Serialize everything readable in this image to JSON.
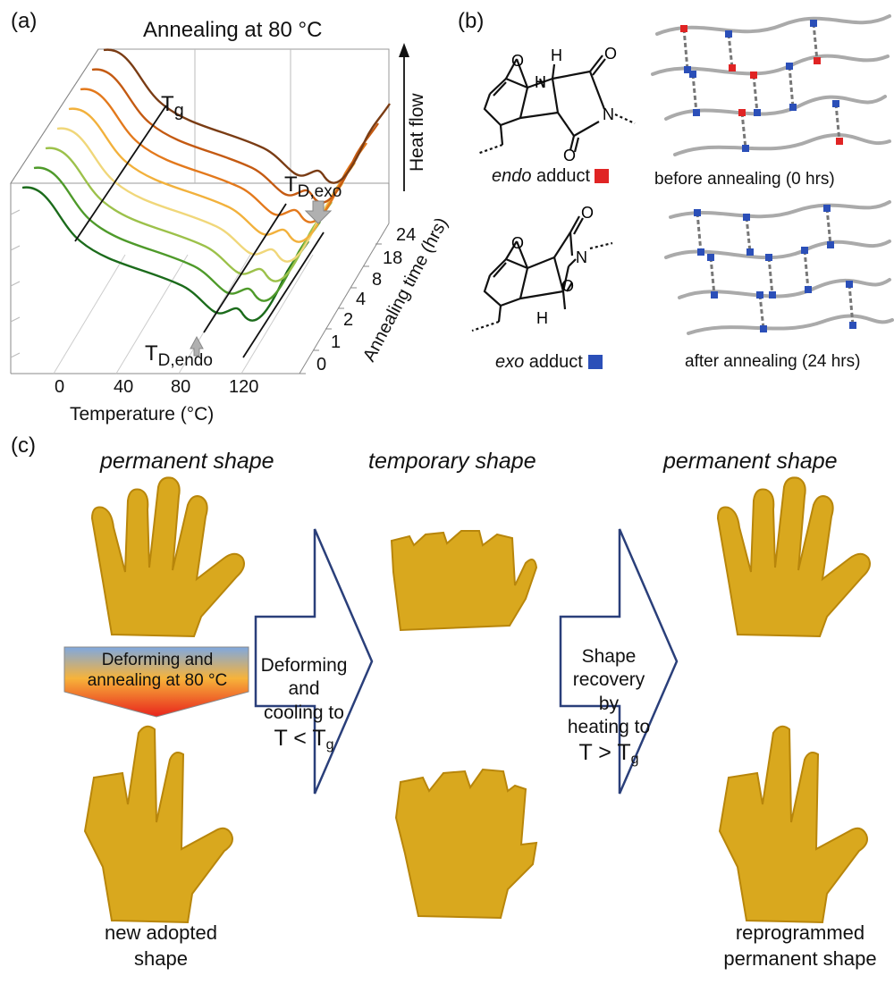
{
  "panel_a": {
    "label": "(a)",
    "title": "Annealing at 80 °C",
    "heat_flow_label": "Heat flow",
    "tg_label": "T",
    "tg_sub": "g",
    "td_exo_label": "T",
    "td_exo_sub": "D,exo",
    "td_endo_label": "T",
    "td_endo_sub": "D,endo",
    "annealing_time_label": "Annealing time (hrs)",
    "annealing_time_ticks": [
      "24",
      "18",
      "8",
      "4",
      "2",
      "1",
      "0"
    ],
    "temperature_label": "Temperature (°C)",
    "temperature_ticks": [
      "0",
      "40",
      "80",
      "120"
    ],
    "curve_colors": [
      "#1b6b1b",
      "#4e9a2a",
      "#9cc14a",
      "#f0d77a",
      "#f2b13c",
      "#e3791c",
      "#c45a12",
      "#7a3c14"
    ]
  },
  "chart_data": {
    "type": "line",
    "title": "Annealing at 80 °C",
    "xlabel": "Temperature (°C)",
    "ylabel": "Heat flow",
    "zlabel": "Annealing time (hrs)",
    "x_ticks": [
      0,
      40,
      80,
      120
    ],
    "series": [
      {
        "name": "0"
      },
      {
        "name": "1"
      },
      {
        "name": "2"
      },
      {
        "name": "4"
      },
      {
        "name": "8"
      },
      {
        "name": "18"
      },
      {
        "name": "24"
      }
    ]
  },
  "panel_b": {
    "label": "(b)",
    "endo_label_italic": "endo",
    "endo_label_rest": " adduct =",
    "exo_label_italic": "exo",
    "exo_label_rest": " adduct =",
    "endo_color": "#e02424",
    "exo_color": "#2b4fb8",
    "before_label": "before annealing (0 hrs)",
    "after_label": "after annealing (24 hrs)",
    "atoms": {
      "O": "O",
      "H": "H",
      "N": "N"
    }
  },
  "panel_c": {
    "label": "(c)",
    "permanent_shape_1": "permanent shape",
    "temporary_shape": "temporary shape",
    "permanent_shape_2": "permanent shape",
    "deforming_annealing": "Deforming  and",
    "deforming_annealing_2": "annealing at 80 °C",
    "arrow1_lines": [
      "Deforming",
      "and",
      "cooling to",
      "T < T"
    ],
    "arrow1_sub": "g",
    "arrow2_lines": [
      "Shape",
      "recovery",
      "by",
      "heating to",
      "T > T"
    ],
    "arrow2_sub": "g",
    "new_adopted": [
      "new adopted",
      "shape"
    ],
    "reprogrammed": [
      "reprogrammed",
      "permanent shape"
    ]
  }
}
